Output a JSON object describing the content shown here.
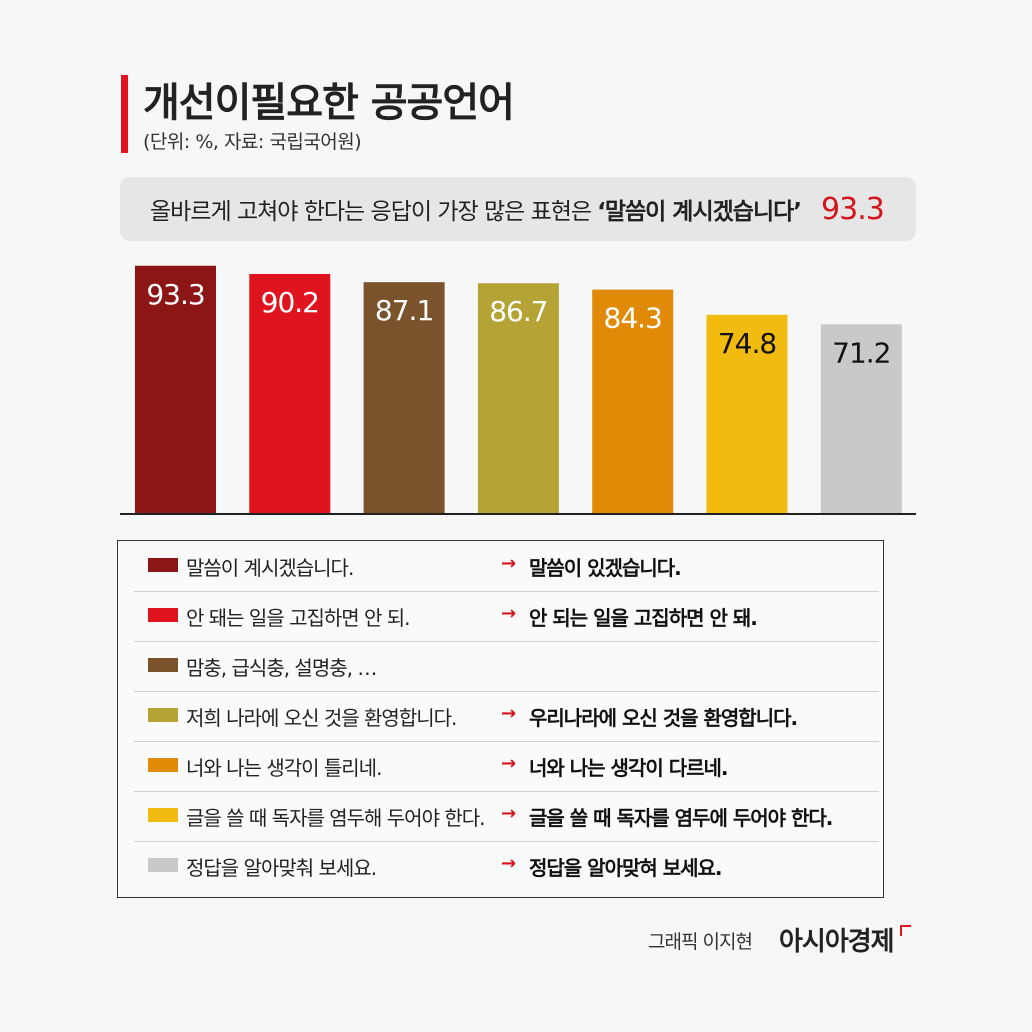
{
  "header": {
    "title": "개선이필요한 공공언어",
    "unit": "(단위: %, 자료: 국립국어원)"
  },
  "highlight": {
    "text": "올바르게 고쳐야 한다는 응답이 가장 많은 표현은",
    "quote": "‘말씀이 계시겠습니다’",
    "value": "93.3"
  },
  "chart_data": {
    "type": "bar",
    "categories": [
      "말씀이 계시겠습니다.",
      "안 돼는 일을 고집하면 안 되.",
      "맘충, 급식충, 설명충, …",
      "저희 나라에 오신 것을 환영합니다.",
      "너와 나는 생각이 틀리네.",
      "글을 쓸 때 독자를 염두해 두어야 한다.",
      "정답을 알아맞춰 보세요."
    ],
    "values": [
      93.3,
      90.2,
      87.1,
      86.7,
      84.3,
      74.8,
      71.2
    ],
    "labels": [
      "93.3",
      "90.2",
      "87.1",
      "86.7",
      "84.3",
      "74.8",
      "71.2"
    ],
    "colors": [
      "#8c1515",
      "#e0141e",
      "#7a522c",
      "#b5a336",
      "#e18a08",
      "#f2bb10",
      "#c9c9c9"
    ],
    "label_colors": [
      "#ffffff",
      "#ffffff",
      "#ffffff",
      "#ffffff",
      "#ffffff",
      "#111111",
      "#111111"
    ],
    "ylim": [
      0,
      100
    ],
    "grid": false,
    "legend": "bottom"
  },
  "legend": {
    "items": [
      {
        "wrong": "말씀이 계시겠습니다.",
        "correct": "말씀이 있겠습니다.",
        "color": "#8c1515"
      },
      {
        "wrong": "안 돼는 일을 고집하면 안 되.",
        "correct": "안 되는 일을 고집하면 안 돼.",
        "color": "#e0141e"
      },
      {
        "wrong": "맘충, 급식충, 설명충, …",
        "correct": "",
        "color": "#7a522c"
      },
      {
        "wrong": "저희 나라에 오신 것을 환영합니다.",
        "correct": "우리나라에 오신 것을 환영합니다.",
        "color": "#b5a336"
      },
      {
        "wrong": "너와 나는 생각이 틀리네.",
        "correct": "너와 나는 생각이 다르네.",
        "color": "#e18a08"
      },
      {
        "wrong": "글을 쓸 때 독자를 염두해 두어야 한다.",
        "correct": "글을 쓸 때 독자를 염두에 두어야 한다.",
        "color": "#f2bb10"
      },
      {
        "wrong": "정답을 알아맞춰 보세요.",
        "correct": "정답을 알아맞혀 보세요.",
        "color": "#c9c9c9"
      }
    ],
    "arrow": "→"
  },
  "footer": {
    "credit": "그래픽 이지현",
    "brand": "아시아경제"
  }
}
